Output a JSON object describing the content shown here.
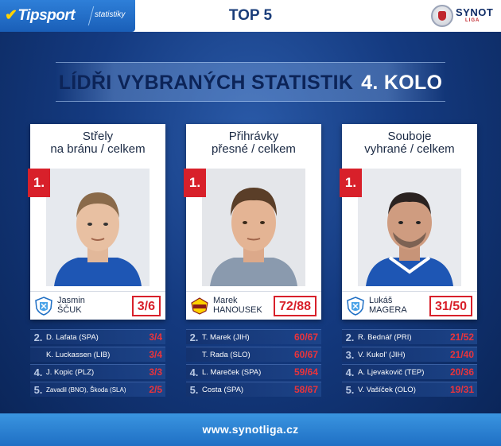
{
  "header": {
    "brand_check": "✔",
    "brand": "Tipsport",
    "brand_sub": "statistiky",
    "title": "TOP 5",
    "league_logo": "SYNOT",
    "league_logo_sub": "LIGA"
  },
  "banner": {
    "title": "LÍDŘI VYBRANÝCH STATISTIK",
    "round": "4. KOLO"
  },
  "columns": [
    {
      "title_line1": "Střely",
      "title_line2": "na bránu / celkem",
      "leader_rank": "1.",
      "leader_first": "Jasmin",
      "leader_last": "ŠČUK",
      "leader_value": "3/6",
      "club_icon": "banik-crest-icon",
      "rows": [
        {
          "rank": "2.",
          "name": "D. Lafata (SPA)",
          "value": "3/4"
        },
        {
          "rank": "",
          "name": "K. Luckassen (LIB)",
          "value": "3/4"
        },
        {
          "rank": "4.",
          "name": "J. Kopic (PLZ)",
          "value": "3/3"
        },
        {
          "rank": "5.",
          "name": "Zavadil (BNO), Škoda (SLA)",
          "value": "2/5"
        }
      ]
    },
    {
      "title_line1": "Přihrávky",
      "title_line2": "přesné / celkem",
      "leader_rank": "1.",
      "leader_first": "Marek",
      "leader_last": "HANOUSEK",
      "leader_value": "72/88",
      "club_icon": "dukla-crest-icon",
      "rows": [
        {
          "rank": "2.",
          "name": "T. Marek (JIH)",
          "value": "60/67"
        },
        {
          "rank": "",
          "name": "T. Rada (SLO)",
          "value": "60/67"
        },
        {
          "rank": "4.",
          "name": "L. Mareček (SPA)",
          "value": "59/64"
        },
        {
          "rank": "5.",
          "name": "Costa (SPA)",
          "value": "58/67"
        }
      ]
    },
    {
      "title_line1": "Souboje",
      "title_line2": "vyhrané / celkem",
      "leader_rank": "1.",
      "leader_first": "Lukáš",
      "leader_last": "MAGERA",
      "leader_value": "31/50",
      "club_icon": "banik-crest-icon",
      "rows": [
        {
          "rank": "2.",
          "name": "R. Bednář (PRI)",
          "value": "21/52"
        },
        {
          "rank": "3.",
          "name": "V. Kukol' (JIH)",
          "value": "21/40"
        },
        {
          "rank": "4.",
          "name": "A. Ljevakovič (TEP)",
          "value": "20/36"
        },
        {
          "rank": "5.",
          "name": "V. Vašíček (OLO)",
          "value": "19/31"
        }
      ]
    }
  ],
  "footer": {
    "url": "www.synotliga.cz"
  },
  "colors": {
    "accent_red": "#d8202a",
    "navy": "#0d2c66",
    "brand_blue": "#1f6fc4"
  }
}
